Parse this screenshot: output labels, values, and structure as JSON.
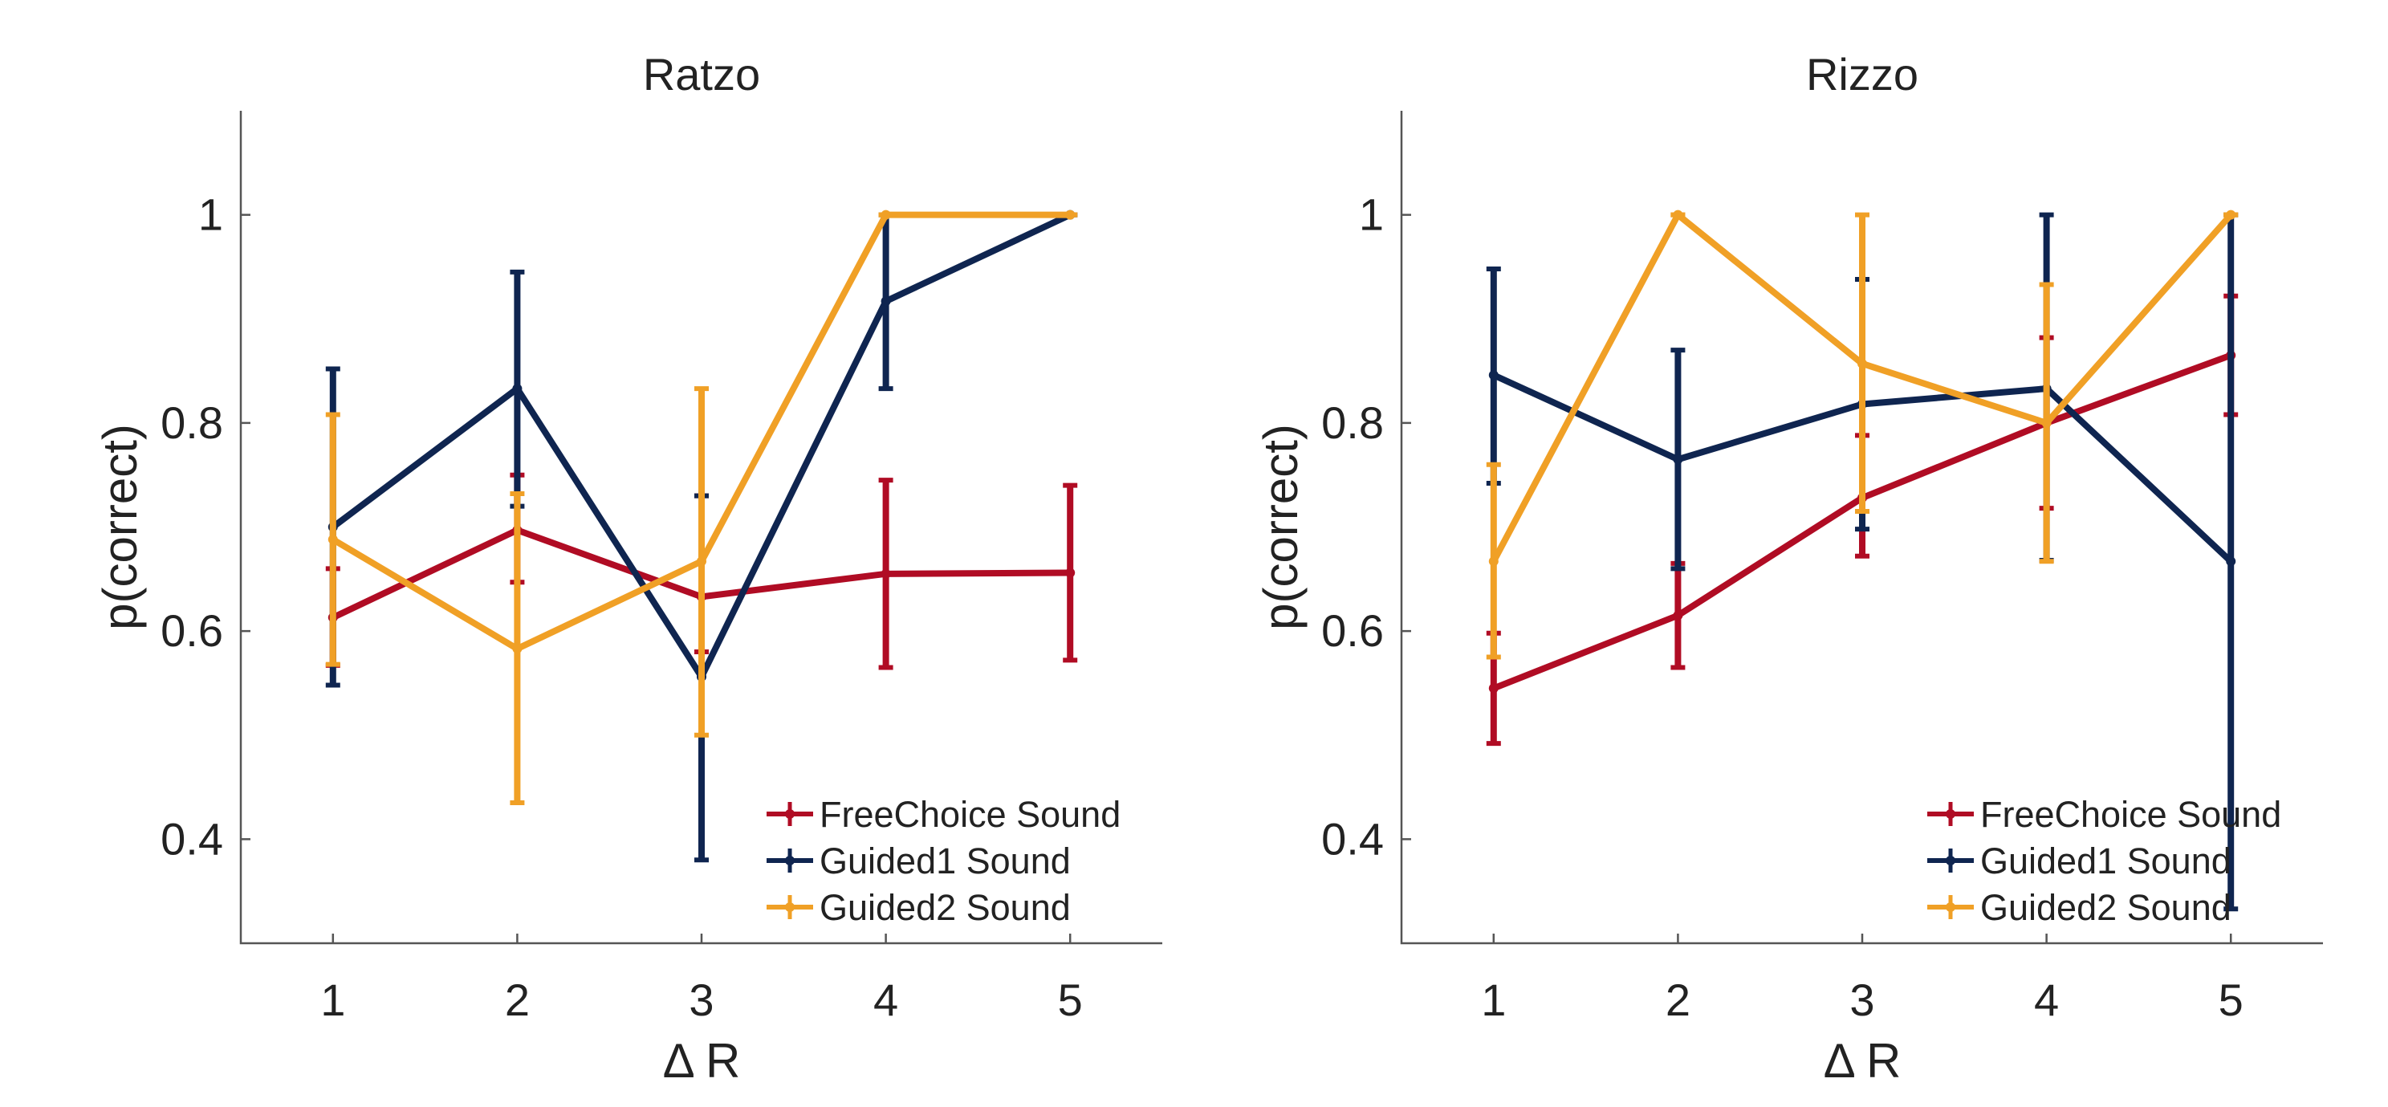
{
  "colors": {
    "FreeChoice Sound": "#b00c24",
    "Guided1 Sound": "#0f2550",
    "Guided2 Sound": "#f0a026"
  },
  "chart_data": [
    {
      "type": "line",
      "title": "Ratzo",
      "xlabel": "Δ R",
      "ylabel": "p(correct)",
      "x": [
        1,
        2,
        3,
        4,
        5
      ],
      "xlim": [
        0.5,
        5.5
      ],
      "ylim": [
        0.3,
        1.1
      ],
      "xticks": [
        "1",
        "2",
        "3",
        "4",
        "5"
      ],
      "yticks": [
        "0.4",
        "0.6",
        "0.8",
        "1"
      ],
      "legend_position": "bottom-right",
      "series": [
        {
          "name": "FreeChoice Sound",
          "values": [
            0.613,
            0.697,
            0.633,
            0.655,
            0.656
          ],
          "err_low": [
            0.567,
            0.647,
            0.58,
            0.565,
            0.572
          ],
          "err_high": [
            0.66,
            0.75,
            0.73,
            0.745,
            0.74
          ]
        },
        {
          "name": "Guided1 Sound",
          "values": [
            0.7,
            0.833,
            0.556,
            0.917,
            1.0
          ],
          "err_low": [
            0.548,
            0.72,
            0.38,
            0.833,
            1.0
          ],
          "err_high": [
            0.852,
            0.945,
            0.73,
            1.0,
            1.0
          ]
        },
        {
          "name": "Guided2 Sound",
          "values": [
            0.688,
            0.583,
            0.667,
            1.0,
            1.0
          ],
          "err_low": [
            0.568,
            0.435,
            0.5,
            1.0,
            1.0
          ],
          "err_high": [
            0.808,
            0.732,
            0.833,
            1.0,
            1.0
          ]
        }
      ]
    },
    {
      "type": "line",
      "title": "Rizzo",
      "xlabel": "Δ R",
      "ylabel": "p(correct)",
      "x": [
        1,
        2,
        3,
        4,
        5
      ],
      "xlim": [
        0.5,
        5.5
      ],
      "ylim": [
        0.3,
        1.1
      ],
      "xticks": [
        "1",
        "2",
        "3",
        "4",
        "5"
      ],
      "yticks": [
        "0.4",
        "0.6",
        "0.8",
        "1"
      ],
      "legend_position": "bottom-right",
      "series": [
        {
          "name": "FreeChoice Sound",
          "values": [
            0.545,
            0.615,
            0.728,
            0.8,
            0.865
          ],
          "err_low": [
            0.492,
            0.565,
            0.672,
            0.718,
            0.808
          ],
          "err_high": [
            0.598,
            0.665,
            0.788,
            0.882,
            0.922
          ]
        },
        {
          "name": "Guided1 Sound",
          "values": [
            0.846,
            0.765,
            0.818,
            0.833,
            0.667
          ],
          "err_low": [
            0.742,
            0.66,
            0.698,
            0.668,
            0.333
          ],
          "err_high": [
            0.948,
            0.87,
            0.938,
            1.0,
            1.0
          ]
        },
        {
          "name": "Guided2 Sound",
          "values": [
            0.667,
            1.0,
            0.857,
            0.8,
            1.0
          ],
          "err_low": [
            0.575,
            1.0,
            0.715,
            0.667,
            1.0
          ],
          "err_high": [
            0.76,
            1.0,
            1.0,
            0.933,
            1.0
          ]
        }
      ]
    }
  ]
}
